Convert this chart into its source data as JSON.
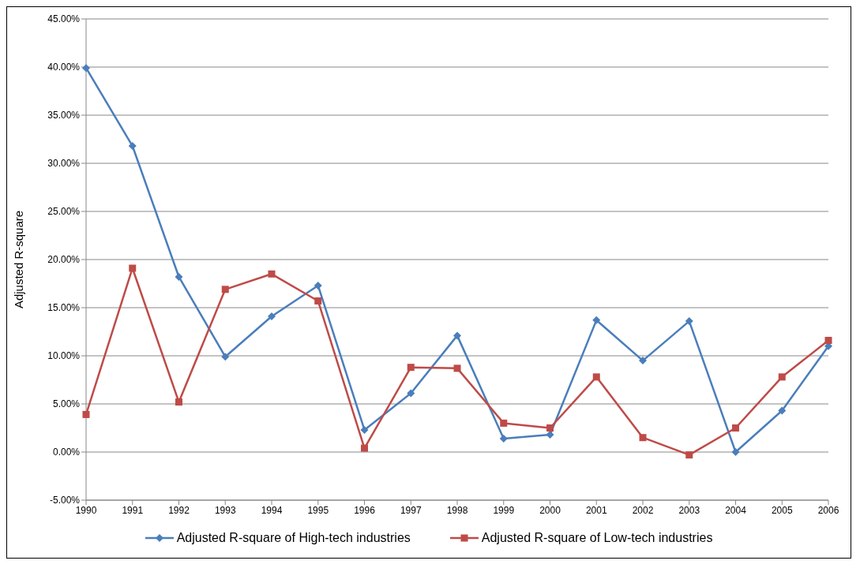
{
  "chart_data": {
    "type": "line",
    "ylabel": "Adjusted R-square",
    "categories": [
      "1990",
      "1991",
      "1992",
      "1993",
      "1994",
      "1995",
      "1996",
      "1997",
      "1998",
      "1999",
      "2000",
      "2001",
      "2002",
      "2003",
      "2004",
      "2005",
      "2006"
    ],
    "series": [
      {
        "name": "Adjusted R-square of High-tech industries",
        "color": "#4a7ebb",
        "marker": "diamond",
        "values": [
          39.9,
          31.8,
          18.2,
          9.9,
          14.1,
          17.3,
          2.3,
          6.1,
          12.1,
          1.4,
          1.8,
          13.7,
          9.5,
          13.6,
          0.0,
          4.3,
          11.0
        ]
      },
      {
        "name": "Adjusted R-square of Low-tech industries",
        "color": "#be4b48",
        "marker": "square",
        "values": [
          3.9,
          19.1,
          5.2,
          16.9,
          18.5,
          15.7,
          0.4,
          8.8,
          8.7,
          3.0,
          2.5,
          7.8,
          1.5,
          -0.3,
          2.5,
          7.8,
          11.6
        ]
      }
    ],
    "ylim": [
      -5,
      45
    ],
    "yticks": [
      {
        "value": -5,
        "label": "-5.00%"
      },
      {
        "value": 0,
        "label": "0.00%"
      },
      {
        "value": 5,
        "label": "5.00%"
      },
      {
        "value": 10,
        "label": "10.00%"
      },
      {
        "value": 15,
        "label": "15.00%"
      },
      {
        "value": 20,
        "label": "20.00%"
      },
      {
        "value": 25,
        "label": "25.00%"
      },
      {
        "value": 30,
        "label": "30.00%"
      },
      {
        "value": 35,
        "label": "35.00%"
      },
      {
        "value": 40,
        "label": "40.00%"
      },
      {
        "value": 45,
        "label": "45.00%"
      }
    ],
    "grid": "y",
    "legend": "bottom",
    "line_style": "solid"
  }
}
